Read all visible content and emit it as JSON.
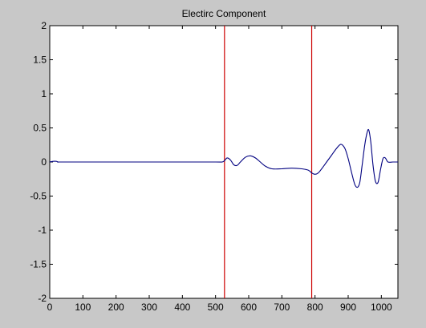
{
  "chart_data": {
    "type": "line",
    "title": "Electirc Component",
    "xlabel": "",
    "ylabel": "",
    "xlim": [
      0,
      1050
    ],
    "ylim": [
      -2,
      2
    ],
    "xticks": [
      0,
      100,
      200,
      300,
      400,
      500,
      600,
      700,
      800,
      900,
      1000
    ],
    "yticks": [
      -2,
      -1.5,
      -1,
      -0.5,
      0,
      0.5,
      1,
      1.5,
      2
    ],
    "xtick_labels": [
      "0",
      "100",
      "200",
      "300",
      "400",
      "500",
      "600",
      "700",
      "800",
      "900",
      "1000"
    ],
    "ytick_labels": [
      "-2",
      "-1.5",
      "-1",
      "-0.5",
      "0",
      "0.5",
      "1",
      "1.5",
      "2"
    ],
    "grid": false,
    "series": [
      {
        "color": "#000080",
        "x": [
          0,
          10,
          20,
          25,
          30,
          100,
          200,
          300,
          400,
          500,
          520,
          527,
          535,
          545,
          555,
          565,
          575,
          590,
          605,
          620,
          635,
          650,
          670,
          700,
          730,
          760,
          780,
          790,
          800,
          810,
          820,
          835,
          850,
          865,
          878,
          890,
          900,
          910,
          920,
          928,
          935,
          942,
          950,
          957,
          962,
          968,
          975,
          982,
          990,
          998,
          1005,
          1012,
          1020,
          1035,
          1050
        ],
        "y": [
          0.0,
          0.01,
          0.01,
          0.0,
          0.0,
          0.0,
          0.0,
          0.0,
          0.0,
          0.0,
          0.0,
          0.02,
          0.06,
          0.03,
          -0.04,
          -0.05,
          0.0,
          0.07,
          0.09,
          0.06,
          0.0,
          -0.06,
          -0.1,
          -0.1,
          -0.09,
          -0.1,
          -0.12,
          -0.16,
          -0.18,
          -0.16,
          -0.1,
          0.0,
          0.1,
          0.2,
          0.26,
          0.2,
          0.05,
          -0.15,
          -0.33,
          -0.37,
          -0.3,
          -0.05,
          0.25,
          0.43,
          0.47,
          0.3,
          -0.05,
          -0.28,
          -0.3,
          -0.1,
          0.05,
          0.06,
          0.0,
          0.0,
          0.0
        ]
      }
    ],
    "vlines": [
      {
        "x": 527,
        "color": "#cc0000"
      },
      {
        "x": 790,
        "color": "#cc0000"
      }
    ]
  }
}
